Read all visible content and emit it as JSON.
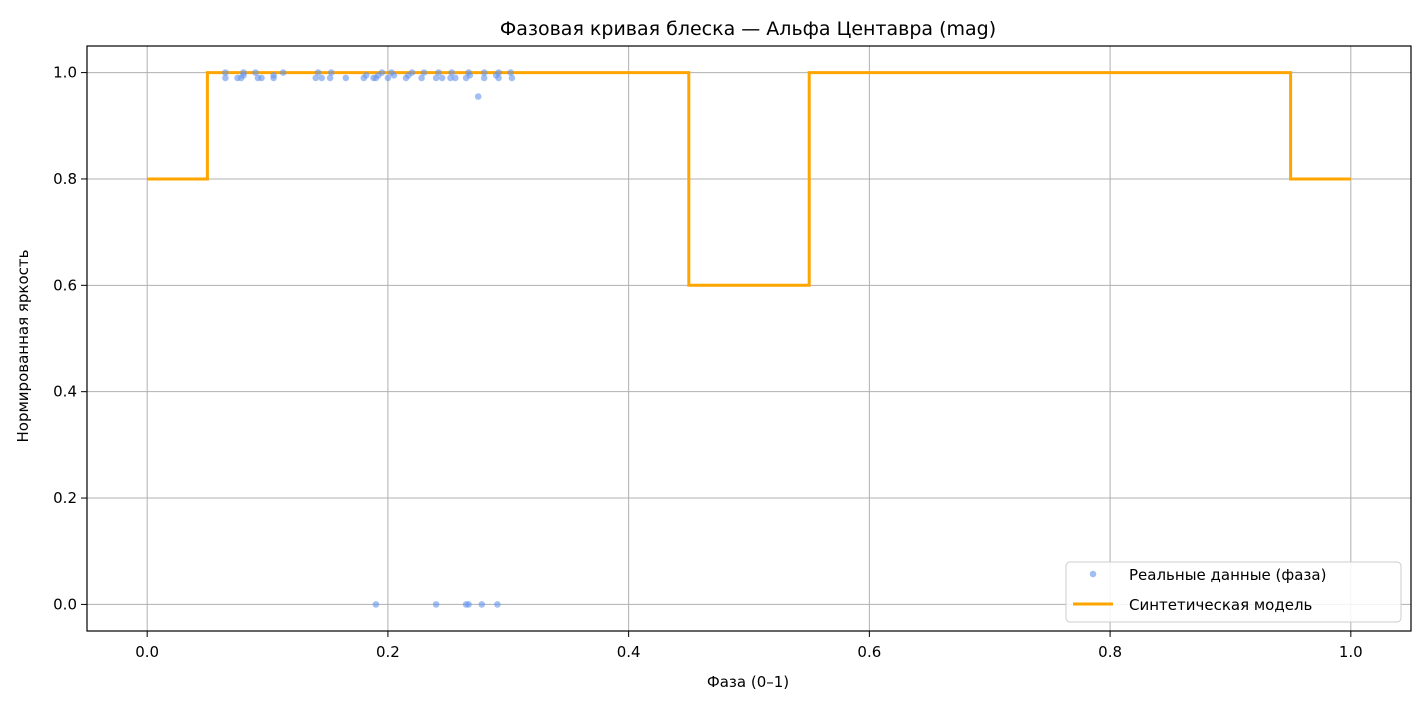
{
  "chart_data": {
    "type": "scatter+line",
    "title": "Фазовая кривая блеска — Альфа Центавра (mag)",
    "xlabel": "Фаза (0–1)",
    "ylabel": "Нормированная яркость",
    "xlim": [
      -0.05,
      1.05
    ],
    "ylim": [
      -0.05,
      1.05
    ],
    "grid": true,
    "legend_position": "lower-right",
    "xticks": [
      0.0,
      0.2,
      0.4,
      0.6,
      0.8,
      1.0
    ],
    "xtick_labels": [
      "0.0",
      "0.2",
      "0.4",
      "0.6",
      "0.8",
      "1.0"
    ],
    "yticks": [
      0.0,
      0.2,
      0.4,
      0.6,
      0.8,
      1.0
    ],
    "ytick_labels": [
      "0.0",
      "0.2",
      "0.4",
      "0.6",
      "0.8",
      "1.0"
    ],
    "series": [
      {
        "name": "Реальные данные (фаза)",
        "kind": "scatter",
        "color": "#6495ED",
        "points": [
          [
            0.065,
            0.99
          ],
          [
            0.065,
            1.0
          ],
          [
            0.075,
            0.99
          ],
          [
            0.078,
            0.99
          ],
          [
            0.08,
            0.995
          ],
          [
            0.08,
            1.0
          ],
          [
            0.09,
            1.0
          ],
          [
            0.092,
            0.99
          ],
          [
            0.095,
            0.99
          ],
          [
            0.105,
            0.99
          ],
          [
            0.105,
            0.995
          ],
          [
            0.113,
            1.0
          ],
          [
            0.14,
            0.99
          ],
          [
            0.142,
            1.0
          ],
          [
            0.145,
            0.99
          ],
          [
            0.152,
            0.99
          ],
          [
            0.153,
            1.0
          ],
          [
            0.165,
            0.99
          ],
          [
            0.18,
            0.99
          ],
          [
            0.182,
            0.995
          ],
          [
            0.188,
            0.99
          ],
          [
            0.19,
            0.99
          ],
          [
            0.192,
            0.995
          ],
          [
            0.195,
            1.0
          ],
          [
            0.2,
            0.99
          ],
          [
            0.203,
            1.0
          ],
          [
            0.205,
            0.995
          ],
          [
            0.215,
            0.99
          ],
          [
            0.217,
            0.995
          ],
          [
            0.22,
            1.0
          ],
          [
            0.228,
            0.99
          ],
          [
            0.23,
            1.0
          ],
          [
            0.24,
            0.99
          ],
          [
            0.242,
            1.0
          ],
          [
            0.245,
            0.99
          ],
          [
            0.252,
            0.99
          ],
          [
            0.253,
            1.0
          ],
          [
            0.256,
            0.99
          ],
          [
            0.265,
            0.99
          ],
          [
            0.267,
            1.0
          ],
          [
            0.268,
            0.995
          ],
          [
            0.275,
            0.955
          ],
          [
            0.28,
            0.99
          ],
          [
            0.28,
            1.0
          ],
          [
            0.29,
            0.995
          ],
          [
            0.292,
            1.0
          ],
          [
            0.292,
            0.99
          ],
          [
            0.302,
            1.0
          ],
          [
            0.303,
            0.99
          ],
          [
            0.19,
            0.0
          ],
          [
            0.24,
            0.0
          ],
          [
            0.265,
            0.0
          ],
          [
            0.267,
            0.0
          ],
          [
            0.278,
            0.0
          ],
          [
            0.291,
            0.0
          ]
        ]
      },
      {
        "name": "Синтетическая модель",
        "kind": "step-line",
        "color": "#FFA500",
        "points": [
          [
            0.0,
            0.8
          ],
          [
            0.05,
            0.8
          ],
          [
            0.05,
            1.0
          ],
          [
            0.45,
            1.0
          ],
          [
            0.45,
            0.6
          ],
          [
            0.55,
            0.6
          ],
          [
            0.55,
            1.0
          ],
          [
            0.95,
            1.0
          ],
          [
            0.95,
            0.8
          ],
          [
            1.0,
            0.8
          ]
        ]
      }
    ]
  }
}
